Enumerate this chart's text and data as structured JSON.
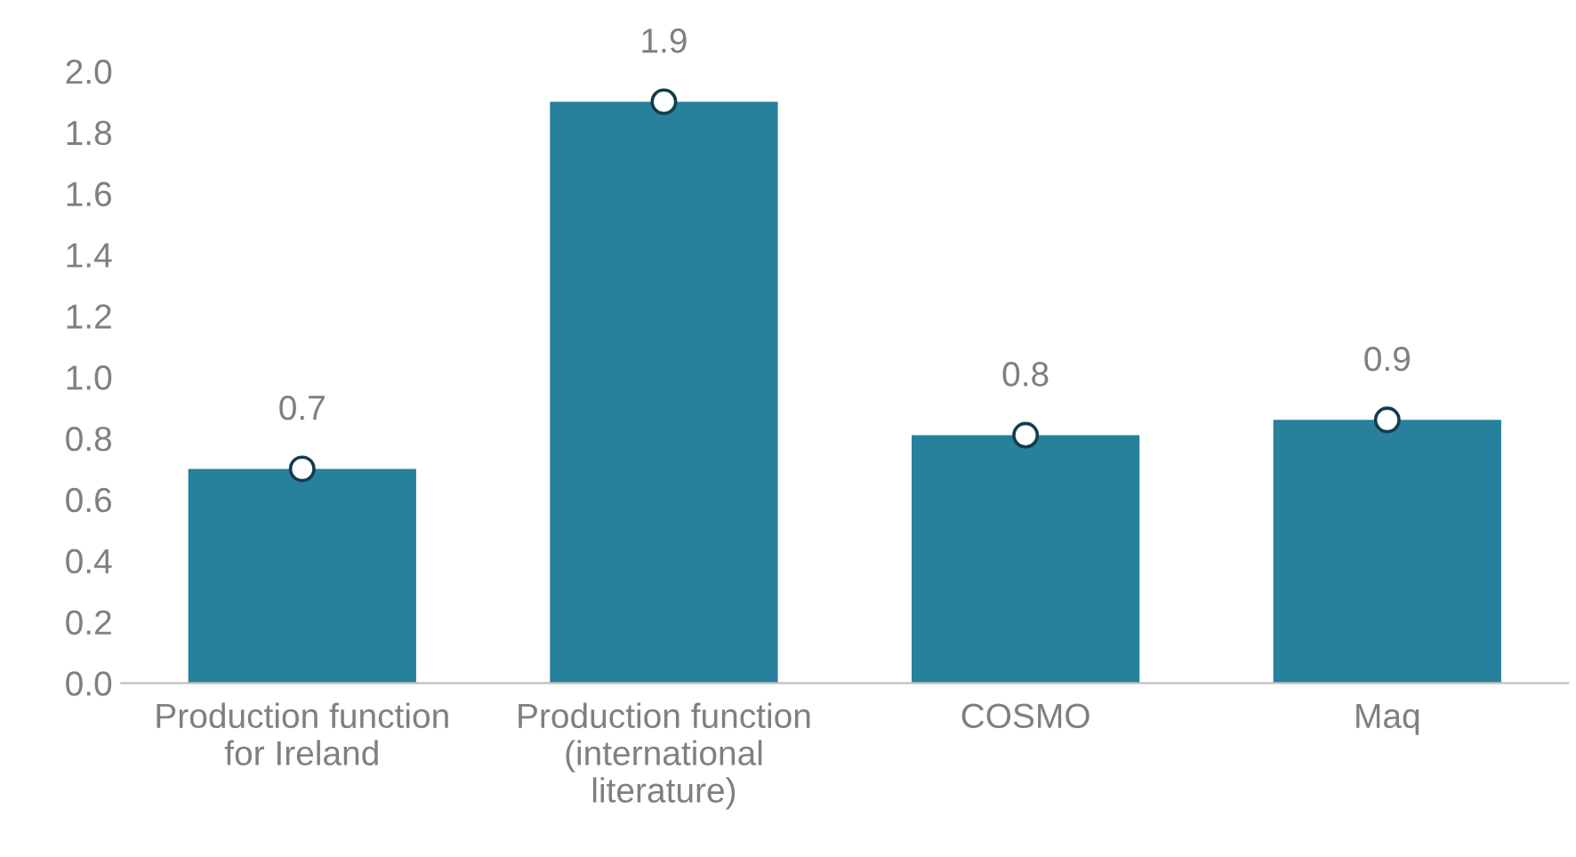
{
  "chart_data": {
    "type": "bar",
    "categories": [
      "Production function\nfor Ireland",
      "Production function\n(international\nliterature)",
      "COSMO",
      "Maq"
    ],
    "series": [
      {
        "color": "#27809c",
        "values": [
          0.7,
          1.9,
          0.81,
          0.86
        ],
        "value_labels": [
          "0.7",
          "1.9",
          "0.8",
          "0.9"
        ]
      },
      {
        "type": "scatter",
        "color": "#ffffff",
        "values": [
          0.7,
          1.9,
          0.81,
          0.86
        ],
        "marker": "circle"
      }
    ],
    "ylim": [
      0,
      2.0
    ],
    "yticks": [
      {
        "value": 0,
        "label": "0.0"
      },
      {
        "value": 0.2,
        "label": "0.2"
      },
      {
        "value": 0.4,
        "label": "0.4"
      },
      {
        "value": 0.6,
        "label": "0.6"
      },
      {
        "value": 0.8,
        "label": "0.8"
      },
      {
        "value": 1.0,
        "label": "1.0"
      },
      {
        "value": 1.2,
        "label": "1.2"
      },
      {
        "value": 1.4,
        "label": "1.4"
      },
      {
        "value": 1.6,
        "label": "1.6"
      },
      {
        "value": 1.8,
        "label": "1.8"
      },
      {
        "value": 2.0,
        "label": "2.0"
      }
    ],
    "grid": false,
    "legend": false
  }
}
